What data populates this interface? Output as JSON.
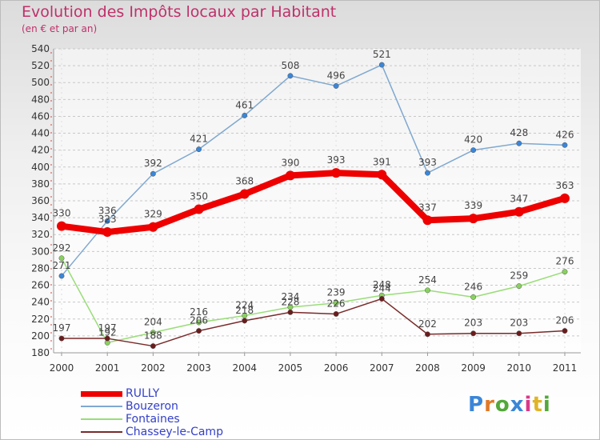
{
  "title": "Evolution des Impôts locaux par Habitant",
  "subtitle": "(en € et par an)",
  "logo": {
    "text": "Proxiti",
    "letter_colors": [
      "#3a86d8",
      "#e07a28",
      "#52a83a",
      "#3a86d8",
      "#d83a8a",
      "#e0b428",
      "#52a83a"
    ]
  },
  "chart_data": {
    "type": "line",
    "title": "Evolution des Impôts locaux par Habitant",
    "subtitle": "(en € et par an)",
    "xlabel": "",
    "ylabel": "",
    "x": [
      "2000",
      "2001",
      "2002",
      "2003",
      "2004",
      "2005",
      "2006",
      "2007",
      "2008",
      "2009",
      "2010",
      "2011"
    ],
    "ylim": [
      180,
      540
    ],
    "yticks": [
      180,
      200,
      220,
      240,
      260,
      280,
      300,
      320,
      340,
      360,
      380,
      400,
      420,
      440,
      460,
      480,
      500,
      520,
      540
    ],
    "grid": "horizontal dashed",
    "legend_position": "bottom-left",
    "series": [
      {
        "name": "RULLY",
        "color": "#ee0000",
        "values": [
          330,
          323,
          329,
          350,
          368,
          390,
          393,
          391,
          337,
          339,
          347,
          363
        ]
      },
      {
        "name": "Bouzeron",
        "color": "#7fa8d0",
        "values": [
          271,
          336,
          392,
          421,
          461,
          508,
          496,
          521,
          393,
          420,
          428,
          426
        ]
      },
      {
        "name": "Fontaines",
        "color": "#99dd77",
        "values": [
          292,
          192,
          204,
          216,
          224,
          234,
          239,
          248,
          254,
          246,
          259,
          276
        ]
      },
      {
        "name": "Chassey-le-Camp",
        "color": "#7a2a2a",
        "values": [
          197,
          197,
          188,
          206,
          218,
          228,
          226,
          244,
          202,
          203,
          203,
          206
        ]
      }
    ]
  }
}
